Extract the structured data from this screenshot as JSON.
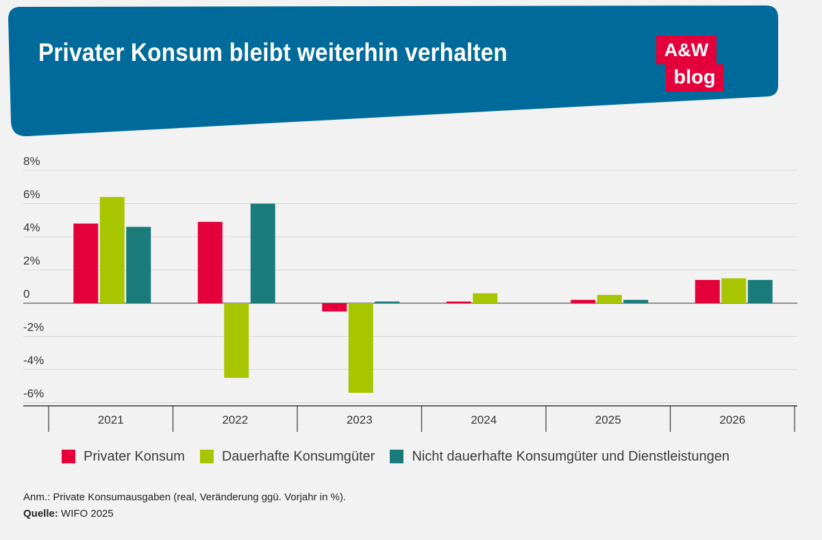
{
  "header": {
    "title": "Privater Konsum bleibt weiterhin verhalten",
    "banner_color": "#006b9a"
  },
  "logo": {
    "line1": "A&W",
    "line2": "blog",
    "color": "#e4003a"
  },
  "chart_data": {
    "type": "bar",
    "categories": [
      "2021",
      "2022",
      "2023",
      "2024",
      "2025",
      "2026"
    ],
    "series": [
      {
        "name": "Privater Konsum",
        "color": "#e4003a",
        "values": [
          4.8,
          4.9,
          -0.5,
          0.1,
          0.2,
          1.4
        ]
      },
      {
        "name": "Dauerhafte Konsumgüter",
        "color": "#a8c600",
        "values": [
          6.4,
          -4.5,
          -5.4,
          0.6,
          0.5,
          1.5
        ]
      },
      {
        "name": "Nicht dauerhafte Konsumgüter und Dienstleistungen",
        "color": "#1b7b7b",
        "values": [
          4.6,
          6.0,
          0.1,
          0.0,
          0.2,
          1.4
        ]
      }
    ],
    "y_ticks": [
      8,
      6,
      4,
      2,
      0,
      -2,
      -4,
      -6
    ],
    "y_tick_labels": [
      "8%",
      "6%",
      "4%",
      "2%",
      "0",
      "-2%",
      "-4%",
      "-6%"
    ],
    "ylim": [
      -6.2,
      8
    ],
    "grid": true,
    "legend_position": "bottom"
  },
  "footer": {
    "note": "Anm.: Private Konsumausgaben (real, Veränderung ggü. Vorjahr in %).",
    "source_label": "Quelle:",
    "source_value": "WIFO 2025"
  }
}
